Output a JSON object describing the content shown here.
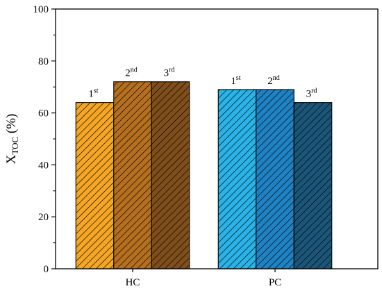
{
  "chart_data": {
    "type": "bar",
    "ylabel": {
      "main": "X",
      "sub": "TOC",
      "suffix": " (%)"
    },
    "xlabel": "",
    "ylim": [
      0,
      100
    ],
    "y_ticks": [
      0,
      20,
      40,
      60,
      80,
      100
    ],
    "categories": [
      "HC",
      "PC"
    ],
    "groups": [
      {
        "category": "HC",
        "bars": [
          {
            "label_num": "1",
            "label_sup": "st",
            "value": 64,
            "color": "#f5a623"
          },
          {
            "label_num": "2",
            "label_sup": "nd",
            "value": 72,
            "color": "#b56f1f"
          },
          {
            "label_num": "3",
            "label_sup": "rd",
            "value": 72,
            "color": "#7f4e1b"
          }
        ]
      },
      {
        "category": "PC",
        "bars": [
          {
            "label_num": "1",
            "label_sup": "st",
            "value": 69,
            "color": "#29b3e6"
          },
          {
            "label_num": "2",
            "label_sup": "nd",
            "value": 69,
            "color": "#1f82c3"
          },
          {
            "label_num": "3",
            "label_sup": "rd",
            "value": 64,
            "color": "#1b5678"
          }
        ]
      }
    ],
    "bar_pattern": "diagonal-hatch",
    "grid": false,
    "legend": "none"
  }
}
